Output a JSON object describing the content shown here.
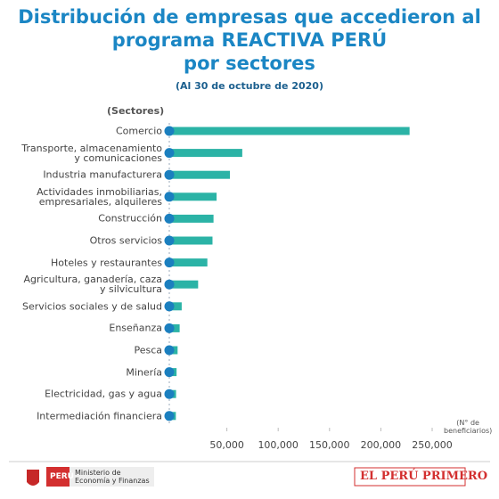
{
  "chart_data": {
    "type": "barh",
    "title": "Distribución de empresas que accedieron al\nprograma REACTIVA PERÚ\npor sectores",
    "subtitle": "(Al 30 de octubre de 2020)",
    "y_label": "(Sectores)",
    "x_label": "(N° de\nbeneficiarios)",
    "categories": [
      "Comercio",
      "Transporte, almacenamiento\ny comunicaciones",
      "Industria manufacturera",
      "Actividades inmobiliarias,\nempresariales, alquileres",
      "Construcción",
      "Otros servicios",
      "Hoteles y restaurantes",
      "Agricultura, ganadería, caza\ny silvicultura",
      "Servicios sociales y de salud",
      "Enseñanza",
      "Pesca",
      "Minería",
      "Electricidad, gas y agua",
      "Intermediación financiera"
    ],
    "values": [
      228000,
      65000,
      53000,
      40000,
      37000,
      36000,
      31000,
      22000,
      6000,
      4000,
      2000,
      1000,
      500,
      300
    ],
    "color": "#2bb3a6",
    "xlim": [
      0,
      250000
    ],
    "xticks": [
      {
        "value": 50000,
        "label": "50,000"
      },
      {
        "value": 100000,
        "label": "100,000"
      },
      {
        "value": 150000,
        "label": "150,000"
      },
      {
        "value": 200000,
        "label": "200,000"
      },
      {
        "value": 250000,
        "label": "250,000"
      }
    ]
  },
  "footer": {
    "badge": "PERÚ",
    "ministry": "Ministerio de\nEconomía y Finanzas",
    "slogan": "EL PERÚ PRIMERO"
  }
}
